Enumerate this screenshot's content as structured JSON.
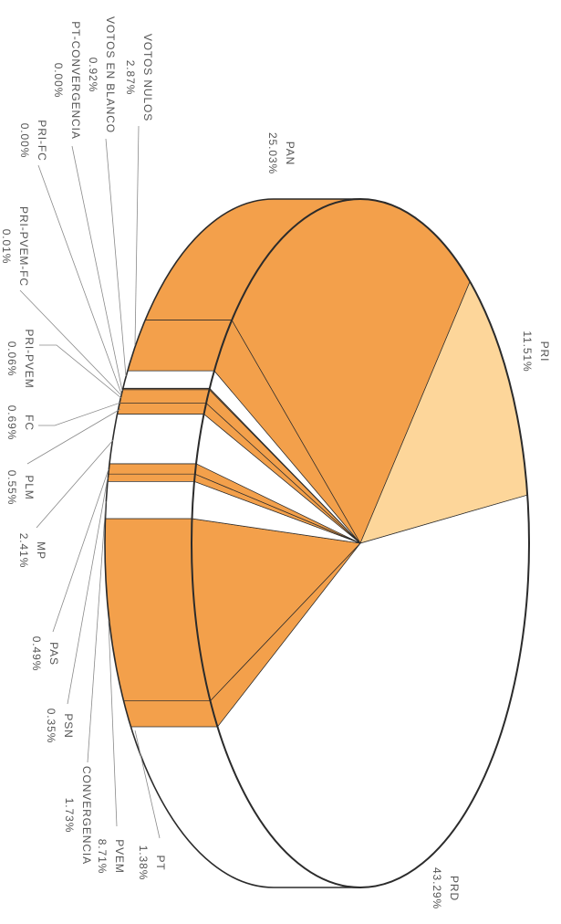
{
  "chart_data": {
    "type": "pie",
    "three_d": true,
    "slices": [
      {
        "name": "PAN",
        "value": 25.03,
        "label": "25.03%",
        "color": "#f3a04b"
      },
      {
        "name": "PRI",
        "value": 11.51,
        "label": "11.51%",
        "color": "#fdd69a"
      },
      {
        "name": "PRD",
        "value": 43.29,
        "label": "43.29%",
        "color": "#ffffff"
      },
      {
        "name": "PT",
        "value": 1.38,
        "label": "1.38%",
        "color": "#f3a04b"
      },
      {
        "name": "PVEM",
        "value": 8.71,
        "label": "8.71%",
        "color": "#f3a04b"
      },
      {
        "name": "CONVERGENCIA",
        "value": 1.73,
        "label": "1.73%",
        "color": "#ffffff"
      },
      {
        "name": "PSN",
        "value": 0.35,
        "label": "0.35%",
        "color": "#f3a04b"
      },
      {
        "name": "PAS",
        "value": 0.49,
        "label": "0.49%",
        "color": "#f3a04b"
      },
      {
        "name": "MP",
        "value": 2.41,
        "label": "2.41%",
        "color": "#ffffff"
      },
      {
        "name": "PLM",
        "value": 0.55,
        "label": "0.55%",
        "color": "#f3a04b"
      },
      {
        "name": "FC",
        "value": 0.69,
        "label": "0.69%",
        "color": "#f3a04b"
      },
      {
        "name": "PRI-PVEM",
        "value": 0.06,
        "label": "0.06%",
        "color": "#f3a04b"
      },
      {
        "name": "PRI-PVEM-FC",
        "value": 0.01,
        "label": "0.01%",
        "color": "#f3a04b"
      },
      {
        "name": "PRI-FC",
        "value": 0.0,
        "label": "0.00%",
        "color": "#f3a04b"
      },
      {
        "name": "PT-CONVERGENCIA",
        "value": 0.0,
        "label": "0.00%",
        "color": "#f3a04b"
      },
      {
        "name": "VOTOS EN BLANCO",
        "value": 0.92,
        "label": "0.92%",
        "color": "#ffffff"
      },
      {
        "name": "VOTOS NULOS",
        "value": 2.87,
        "label": "2.87%",
        "color": "#f3a04b"
      }
    ],
    "outline_color": "#2b2b2b",
    "label_color": "#555555"
  }
}
